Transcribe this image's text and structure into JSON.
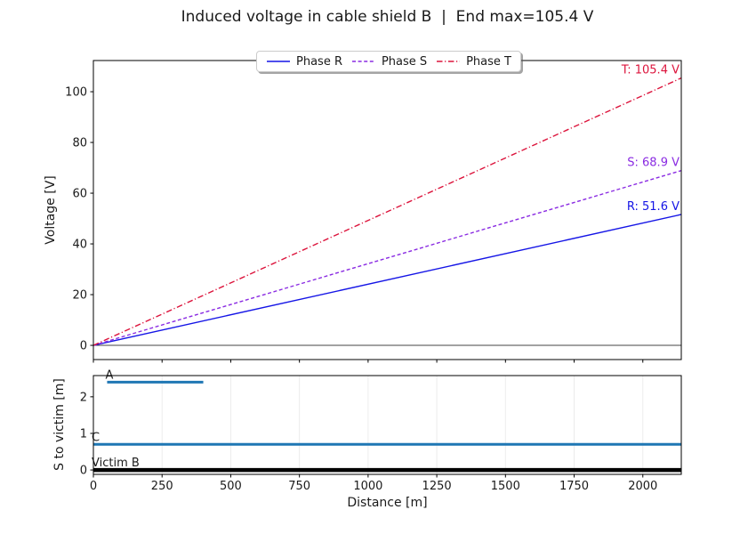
{
  "title": "Induced voltage in cable shield B  |  End max=105.4 V",
  "colors": {
    "spine": "#000000",
    "grid": "#ececec",
    "zero_line": "#444444",
    "tick_text": "#1a1a1a",
    "phase_r": "#1515e6",
    "phase_s": "#8a2be2",
    "phase_t": "#dc143c",
    "victim_conductor": "#1f77b4",
    "victim_b": "#000000"
  },
  "chart_data": [
    {
      "type": "line",
      "name": "induced-voltage-plot",
      "title": "Induced voltage in cable shield B  |  End max=105.4 V",
      "xlabel": "",
      "ylabel": "Voltage [V]",
      "xlim": [
        0,
        2140
      ],
      "ylim": [
        -5.6,
        112.3
      ],
      "xticks": [
        0,
        250,
        500,
        750,
        1000,
        1250,
        1500,
        1750,
        2000
      ],
      "yticks": [
        0,
        20,
        40,
        60,
        80,
        100
      ],
      "x_tick_labels_visible": false,
      "grid": "none",
      "zero_line": 0,
      "legend_position": "upper center",
      "series": [
        {
          "name": "Phase R",
          "color": "#1515e6",
          "linestyle": "solid",
          "x": [
            0,
            2140
          ],
          "y": [
            0,
            51.6
          ],
          "end_value": 51.6,
          "end_label": "R: 51.6 V"
        },
        {
          "name": "Phase S",
          "color": "#8a2be2",
          "linestyle": "dashed",
          "x": [
            0,
            2140
          ],
          "y": [
            0,
            68.9
          ],
          "end_value": 68.9,
          "end_label": "S: 68.9 V"
        },
        {
          "name": "Phase T",
          "color": "#dc143c",
          "linestyle": "dashdot",
          "x": [
            0,
            2140
          ],
          "y": [
            0,
            105.4
          ],
          "end_value": 105.4,
          "end_label": "T: 105.4 V"
        }
      ]
    },
    {
      "type": "line",
      "name": "separation-geometry-plot",
      "xlabel": "Distance [m]",
      "ylabel": "S to victim [m]",
      "xlim": [
        0,
        2140
      ],
      "ylim": [
        -0.12,
        2.58
      ],
      "xticks": [
        0,
        250,
        500,
        750,
        1000,
        1250,
        1500,
        1750,
        2000
      ],
      "yticks": [
        0,
        1,
        2
      ],
      "x_tick_labels_visible": true,
      "grid": "vertical",
      "series": [
        {
          "name": "A",
          "label": "A",
          "y": 2.4,
          "x": [
            50,
            400
          ],
          "color": "#1f77b4",
          "width": 3
        },
        {
          "name": "C",
          "label": "C",
          "y": 0.7,
          "x": [
            0,
            2140
          ],
          "color": "#1f77b4",
          "width": 3
        },
        {
          "name": "Victim B",
          "label": "Victim B",
          "y": 0.0,
          "x": [
            0,
            2140
          ],
          "color": "#000000",
          "width": 4.5
        }
      ]
    }
  ]
}
